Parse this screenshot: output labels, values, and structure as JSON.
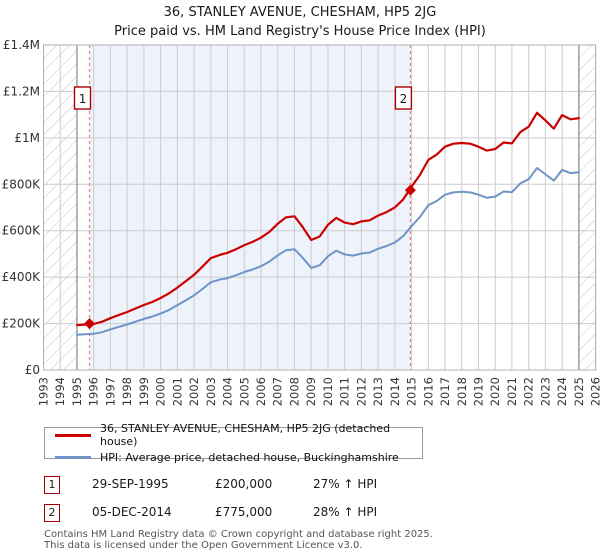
{
  "page": {
    "title": "36, STANLEY AVENUE, CHESHAM, HP5 2JG",
    "subtitle": "Price paid vs. HM Land Registry's House Price Index (HPI)"
  },
  "chart_data": {
    "type": "line",
    "title": "36, STANLEY AVENUE, CHESHAM, HP5 2JG",
    "subtitle": "Price paid vs. HM Land Registry's House Price Index (HPI)",
    "xlabel": "",
    "ylabel": "",
    "xlim": [
      1993,
      2026
    ],
    "ylim": [
      0,
      1400000
    ],
    "grid": true,
    "legend_position": "bottom",
    "x": [
      1995,
      1995.5,
      1996,
      1996.5,
      1997,
      1997.5,
      1998,
      1998.5,
      1999,
      1999.5,
      2000,
      2000.5,
      2001,
      2001.5,
      2002,
      2002.5,
      2003,
      2003.5,
      2004,
      2004.5,
      2005,
      2005.5,
      2006,
      2006.5,
      2007,
      2007.5,
      2008,
      2008.5,
      2009,
      2009.5,
      2010,
      2010.5,
      2011,
      2011.5,
      2012,
      2012.5,
      2013,
      2013.5,
      2014,
      2014.5,
      2015,
      2015.5,
      2016,
      2016.5,
      2017,
      2017.5,
      2018,
      2018.5,
      2019,
      2019.5,
      2020,
      2020.5,
      2021,
      2021.5,
      2022,
      2022.5,
      2023,
      2023.5,
      2024,
      2024.5,
      2025
    ],
    "series": [
      {
        "name": "36, STANLEY AVENUE, CHESHAM, HP5 2JG (detached house)",
        "color": "#cc0000",
        "width": 2.2,
        "values": [
          193000,
          196000,
          198000,
          208000,
          223000,
          237000,
          250000,
          265000,
          280000,
          293000,
          310000,
          330000,
          355000,
          382000,
          410000,
          445000,
          482000,
          495000,
          505000,
          520000,
          538000,
          552000,
          570000,
          595000,
          630000,
          658000,
          662000,
          615000,
          560000,
          575000,
          625000,
          655000,
          635000,
          628000,
          640000,
          645000,
          665000,
          680000,
          700000,
          735000,
          790000,
          840000,
          905000,
          928000,
          962000,
          975000,
          978000,
          975000,
          962000,
          945000,
          952000,
          980000,
          976000,
          1025000,
          1048000,
          1108000,
          1075000,
          1040000,
          1098000,
          1080000,
          1085000
        ]
      },
      {
        "name": "HPI: Average price, detached house, Buckinghamshire",
        "color": "#6f94c6",
        "width": 2,
        "values": [
          152000,
          154000,
          156000,
          163000,
          175000,
          186000,
          196000,
          208000,
          220000,
          230000,
          243000,
          259000,
          279000,
          300000,
          322000,
          349000,
          378000,
          389000,
          396000,
          408000,
          422000,
          433000,
          447000,
          467000,
          494000,
          516000,
          520000,
          483000,
          440000,
          451000,
          490000,
          514000,
          498000,
          493000,
          502000,
          506000,
          522000,
          534000,
          549000,
          577000,
          620000,
          659000,
          710000,
          728000,
          755000,
          765000,
          768000,
          765000,
          755000,
          742000,
          747000,
          769000,
          766000,
          804000,
          822000,
          870000,
          843000,
          816000,
          862000,
          848000,
          852000
        ]
      }
    ],
    "yticks": [
      {
        "value": 0,
        "label": "£0"
      },
      {
        "value": 200000,
        "label": "£200K"
      },
      {
        "value": 400000,
        "label": "£400K"
      },
      {
        "value": 600000,
        "label": "£600K"
      },
      {
        "value": 800000,
        "label": "£800K"
      },
      {
        "value": 1000000,
        "label": "£1M"
      },
      {
        "value": 1200000,
        "label": "£1.2M"
      },
      {
        "value": 1400000,
        "label": "£1.4M"
      }
    ],
    "xticks": [
      "1993",
      "1994",
      "1995",
      "1996",
      "1997",
      "1998",
      "1999",
      "2000",
      "2001",
      "2002",
      "2003",
      "2004",
      "2005",
      "2006",
      "2007",
      "2008",
      "2009",
      "2010",
      "2011",
      "2012",
      "2013",
      "2014",
      "2015",
      "2016",
      "2017",
      "2018",
      "2019",
      "2020",
      "2021",
      "2022",
      "2023",
      "2024",
      "2025",
      "2026"
    ],
    "shaded_span": {
      "from": 1995.75,
      "to": 2014.93,
      "color": "#edf2fb"
    },
    "hatched_spans": [
      [
        1993,
        1995.0
      ],
      [
        2025.0,
        2026
      ]
    ],
    "sale_markers": [
      {
        "label": "1",
        "x": 1995.75,
        "value": 200000
      },
      {
        "label": "2",
        "x": 2014.93,
        "value": 775000
      }
    ],
    "colors": {
      "grid": "#cccccc",
      "plot_border": "#b0b0b0",
      "data_edge": "#888888",
      "hatch": "#c4c4c4",
      "sale_line": "#f08080",
      "marker_box_border": "#aa0000",
      "tick_text": "#333333"
    }
  },
  "transactions": [
    {
      "num": "1",
      "date": "29-SEP-1995",
      "price": "£200,000",
      "hpi_diff": "27% ↑ HPI"
    },
    {
      "num": "2",
      "date": "05-DEC-2014",
      "price": "£775,000",
      "hpi_diff": "28% ↑ HPI"
    }
  ],
  "footer": {
    "line1": "Contains HM Land Registry data © Crown copyright and database right 2025.",
    "line2": "This data is licensed under the Open Government Licence v3.0."
  }
}
